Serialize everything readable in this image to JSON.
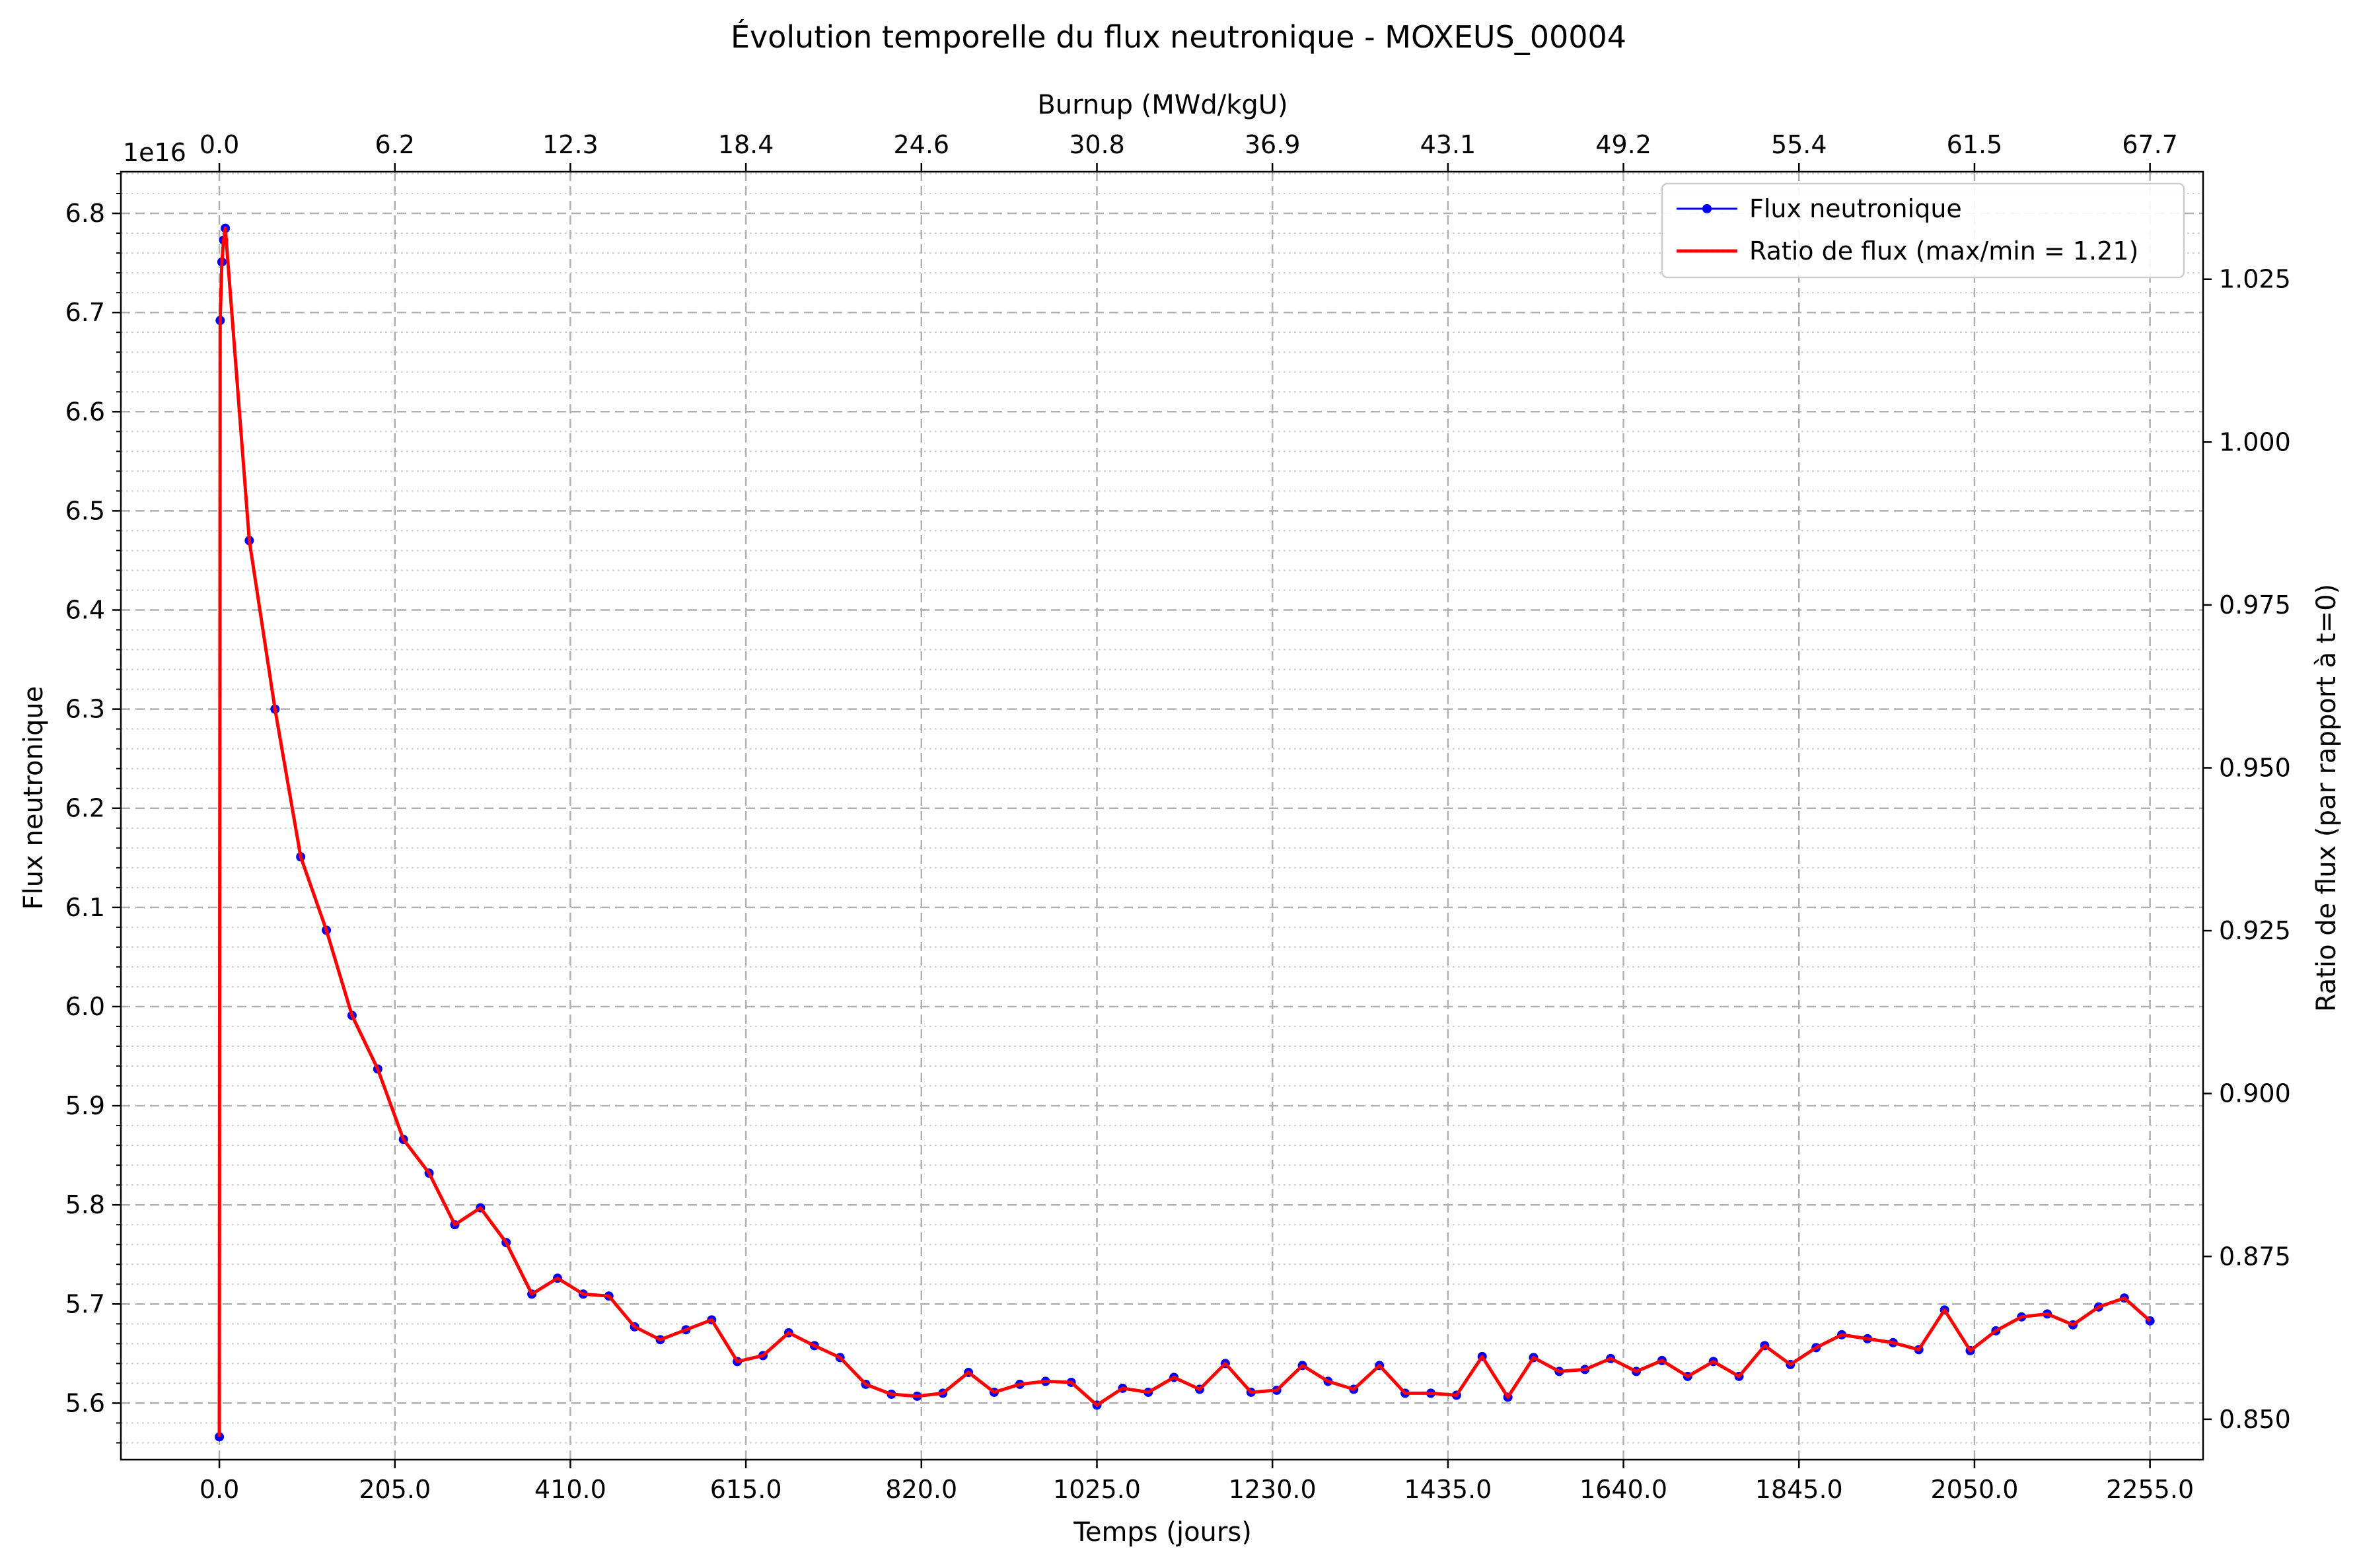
{
  "chart_data": {
    "type": "line",
    "title": "Évolution temporelle du flux neutronique - MOXEUS_00004",
    "xlabel": "Temps (jours)",
    "ylabel": "Flux neutronique",
    "y_offset_text": "1e16",
    "y_scale": 1e+16,
    "top_xlabel": "Burnup (MWd/kgU)",
    "right_ylabel": "Ratio de flux (par rapport à t=0)",
    "xlim": [
      -115,
      2317
    ],
    "ylim": [
      5.543,
      6.842
    ],
    "right_ylim": [
      0.8438,
      1.0415
    ],
    "grid": true,
    "legend_position": "top-right",
    "x_ticks": [
      0.0,
      205.0,
      410.0,
      615.0,
      820.0,
      1025.0,
      1230.0,
      1435.0,
      1640.0,
      1845.0,
      2050.0,
      2255.0
    ],
    "x_tick_labels": [
      "0.0",
      "205.0",
      "410.0",
      "615.0",
      "820.0",
      "1025.0",
      "1230.0",
      "1435.0",
      "1640.0",
      "1845.0",
      "2050.0",
      "2255.0"
    ],
    "top_x_ticks": [
      0.0,
      205.0,
      410.0,
      615.0,
      820.0,
      1025.0,
      1230.0,
      1435.0,
      1640.0,
      1845.0,
      2050.0,
      2255.0
    ],
    "top_x_tick_labels": [
      "0.0",
      "6.2",
      "12.3",
      "18.4",
      "24.6",
      "30.8",
      "36.9",
      "43.1",
      "49.2",
      "55.4",
      "61.5",
      "67.7"
    ],
    "y_ticks": [
      5.6,
      5.7,
      5.8,
      5.9,
      6.0,
      6.1,
      6.2,
      6.3,
      6.4,
      6.5,
      6.6,
      6.7,
      6.8
    ],
    "y_tick_labels": [
      "5.6",
      "5.7",
      "5.8",
      "5.9",
      "6.0",
      "6.1",
      "6.2",
      "6.3",
      "6.4",
      "6.5",
      "6.6",
      "6.7",
      "6.8"
    ],
    "right_y_ticks": [
      0.85,
      0.875,
      0.9,
      0.925,
      0.95,
      0.975,
      1.0,
      1.025
    ],
    "right_y_tick_labels": [
      "0.850",
      "0.875",
      "0.900",
      "0.925",
      "0.950",
      "0.975",
      "1.000",
      "1.025"
    ],
    "series": [
      {
        "name": "Flux neutronique",
        "color": "#0000ff",
        "marker": "circle",
        "x": [
          0,
          1,
          3,
          5,
          7,
          35,
          65,
          95,
          125,
          155,
          185,
          215,
          245,
          275,
          305,
          335,
          365,
          395,
          425,
          455,
          485,
          515,
          545,
          575,
          605,
          635,
          665,
          695,
          725,
          755,
          785,
          815,
          845,
          875,
          905,
          935,
          965,
          995,
          1025,
          1055,
          1085,
          1115,
          1145,
          1175,
          1205,
          1235,
          1265,
          1295,
          1325,
          1355,
          1385,
          1415,
          1445,
          1475,
          1505,
          1535,
          1565,
          1595,
          1625,
          1655,
          1685,
          1715,
          1745,
          1775,
          1805,
          1835,
          1865,
          1895,
          1925,
          1955,
          1985,
          2015,
          2045,
          2075,
          2105,
          2135,
          2165,
          2195,
          2225,
          2255
        ],
        "y": [
          5.566,
          6.692,
          6.751,
          6.773,
          6.785,
          6.47,
          6.3,
          6.151,
          6.077,
          5.991,
          5.937,
          5.866,
          5.832,
          5.78,
          5.797,
          5.762,
          5.71,
          5.726,
          5.71,
          5.708,
          5.677,
          5.664,
          5.674,
          5.684,
          5.642,
          5.648,
          5.671,
          5.658,
          5.646,
          5.619,
          5.609,
          5.607,
          5.61,
          5.631,
          5.611,
          5.619,
          5.622,
          5.621,
          5.598,
          5.615,
          5.611,
          5.626,
          5.614,
          5.64,
          5.611,
          5.613,
          5.638,
          5.622,
          5.614,
          5.638,
          5.61,
          5.61,
          5.608,
          5.647,
          5.606,
          5.646,
          5.632,
          5.634,
          5.645,
          5.632,
          5.643,
          5.627,
          5.642,
          5.627,
          5.658,
          5.639,
          5.656,
          5.669,
          5.665,
          5.661,
          5.654,
          5.694,
          5.653,
          5.673,
          5.687,
          5.69,
          5.679,
          5.697,
          5.706,
          5.683
        ]
      },
      {
        "name": "Ratio de flux (max/min = 1.21)",
        "color": "#ff0000",
        "axis": "right",
        "same_trace_as": "Flux neutronique"
      }
    ]
  }
}
